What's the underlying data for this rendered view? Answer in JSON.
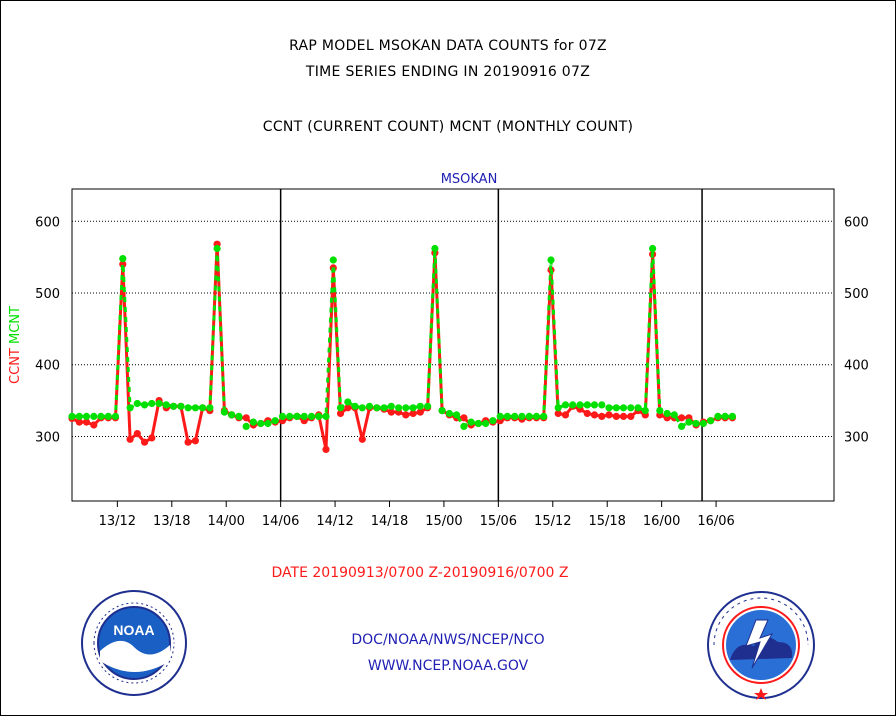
{
  "header": {
    "title_line1": "RAP MODEL MSOKAN DATA COUNTS for 07Z",
    "title_line2": "TIME SERIES ENDING IN 20190916 07Z",
    "subtitle": "CCNT (CURRENT COUNT) MCNT (MONTHLY COUNT)"
  },
  "chart_data": {
    "type": "line",
    "title": "MSOKAN",
    "ylabel_parts": [
      {
        "text": "CCNT",
        "color": "#ff1a1a"
      },
      {
        "text": "MCNT",
        "color": "#00e000"
      }
    ],
    "ylim": [
      210,
      645
    ],
    "yticks": [
      300,
      400,
      500,
      600
    ],
    "x_range_hours": [
      0,
      84
    ],
    "x_range_note": "hours from 13/07Z",
    "xticks": [
      {
        "hour": 5,
        "label": "13/12"
      },
      {
        "hour": 11,
        "label": "13/18"
      },
      {
        "hour": 17,
        "label": "14/00"
      },
      {
        "hour": 23,
        "label": "14/06"
      },
      {
        "hour": 29,
        "label": "14/12"
      },
      {
        "hour": 35,
        "label": "14/18"
      },
      {
        "hour": 41,
        "label": "15/00"
      },
      {
        "hour": 47,
        "label": "15/06"
      },
      {
        "hour": 53,
        "label": "15/12"
      },
      {
        "hour": 59,
        "label": "15/18"
      },
      {
        "hour": 65,
        "label": "16/00"
      },
      {
        "hour": 71,
        "label": "16/06"
      }
    ],
    "day_boundaries": [
      23,
      47,
      71
    ],
    "grid": "horizontal dotted",
    "series": [
      {
        "name": "CCNT",
        "color": "#ff1a1a",
        "x": [
          0,
          0.8,
          1.6,
          2.4,
          3.2,
          4,
          4.8,
          5.6,
          6.4,
          7.2,
          8,
          8.8,
          9.6,
          10.4,
          11.2,
          12,
          12.8,
          13.6,
          14.4,
          15.2,
          16,
          16.8,
          17.6,
          18.4,
          19.2,
          20,
          20.8,
          21.6,
          22.4,
          23.2,
          24,
          24.8,
          25.6,
          26.4,
          27.2,
          28,
          28.8,
          29.6,
          30.4,
          31.2,
          32,
          32.8,
          33.6,
          34.4,
          35.2,
          36,
          36.8,
          37.6,
          38.4,
          39.2,
          40,
          40.8,
          41.6,
          42.4,
          43.2,
          44,
          44.8,
          45.6,
          46.4,
          47.2,
          48,
          48.8,
          49.6,
          50.4,
          51.2,
          52,
          52.8,
          53.6,
          54.4,
          55.2,
          56,
          56.8,
          57.6,
          58.4,
          59.2,
          60,
          60.8,
          61.6,
          62.4,
          63.2,
          64,
          64.8,
          65.6,
          66.4,
          67.2,
          68,
          68.8,
          69.6,
          70.4,
          71.2,
          72,
          72.8
        ],
        "values": [
          325,
          320,
          320,
          316,
          326,
          326,
          326,
          540,
          296,
          304,
          292,
          298,
          350,
          340,
          342,
          342,
          292,
          294,
          340,
          336,
          568,
          336,
          330,
          326,
          326,
          316,
          318,
          322,
          320,
          322,
          326,
          328,
          322,
          326,
          330,
          282,
          535,
          332,
          340,
          340,
          296,
          340,
          340,
          338,
          334,
          334,
          330,
          332,
          334,
          340,
          556,
          336,
          330,
          326,
          326,
          316,
          318,
          322,
          320,
          322,
          326,
          326,
          324,
          326,
          326,
          326,
          532,
          332,
          330,
          342,
          338,
          332,
          330,
          328,
          330,
          328,
          328,
          328,
          336,
          330,
          554,
          330,
          326,
          326,
          326,
          326,
          316,
          320,
          322,
          326,
          326,
          326
        ]
      },
      {
        "name": "MCNT",
        "color": "#00e000",
        "x": [
          0,
          0.8,
          1.6,
          2.4,
          3.2,
          4,
          4.8,
          5.6,
          6.4,
          7.2,
          8,
          8.8,
          9.6,
          10.4,
          11.2,
          12,
          12.8,
          13.6,
          14.4,
          15.2,
          16,
          16.8,
          17.6,
          18.4,
          19.2,
          20,
          20.8,
          21.6,
          22.4,
          23.2,
          24,
          24.8,
          25.6,
          26.4,
          27.2,
          28,
          28.8,
          29.6,
          30.4,
          31.2,
          32,
          32.8,
          33.6,
          34.4,
          35.2,
          36,
          36.8,
          37.6,
          38.4,
          39.2,
          40,
          40.8,
          41.6,
          42.4,
          43.2,
          44,
          44.8,
          45.6,
          46.4,
          47.2,
          48,
          48.8,
          49.6,
          50.4,
          51.2,
          52,
          52.8,
          53.6,
          54.4,
          55.2,
          56,
          56.8,
          57.6,
          58.4,
          59.2,
          60,
          60.8,
          61.6,
          62.4,
          63.2,
          64,
          64.8,
          65.6,
          66.4,
          67.2,
          68,
          68.8,
          69.6,
          70.4,
          71.2,
          72,
          72.8
        ],
        "values": [
          328,
          328,
          328,
          328,
          328,
          328,
          328,
          548,
          340,
          346,
          344,
          346,
          346,
          344,
          342,
          342,
          340,
          340,
          340,
          340,
          562,
          334,
          330,
          328,
          314,
          320,
          318,
          318,
          322,
          328,
          328,
          328,
          328,
          328,
          328,
          328,
          546,
          340,
          348,
          342,
          340,
          342,
          340,
          340,
          342,
          340,
          340,
          340,
          342,
          342,
          562,
          336,
          332,
          330,
          314,
          320,
          318,
          318,
          322,
          328,
          328,
          328,
          328,
          328,
          328,
          328,
          546,
          340,
          344,
          344,
          344,
          344,
          344,
          344,
          340,
          340,
          340,
          340,
          340,
          336,
          562,
          336,
          332,
          330,
          314,
          320,
          318,
          318,
          322,
          328,
          328,
          328
        ]
      }
    ]
  },
  "footer": {
    "date_range": "DATE 20190913/0700 Z-20190916/0700 Z",
    "org_path": "DOC/NOAA/NWS/NCEP/NCO",
    "website": "WWW.NCEP.NOAA.GOV"
  },
  "logos": {
    "noaa_text": "NOAA",
    "nws_text": "NATIONAL WEATHER SERVICE"
  },
  "colors": {
    "ccnt": "#ff1a1a",
    "mcnt": "#00e000",
    "title": "#1f1fb4"
  }
}
